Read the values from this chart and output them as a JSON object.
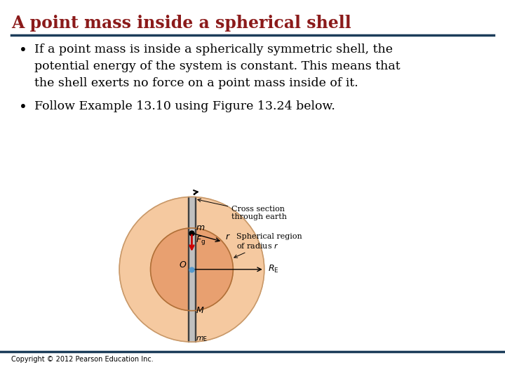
{
  "title": "A point mass inside a spherical shell",
  "title_color": "#8B1A1A",
  "title_fontsize": 17,
  "separator_color": "#1C3D5A",
  "bullet1_line1": "If a point mass is inside a spherically symmetric shell, the",
  "bullet1_line2": "potential energy of the system is constant. This means that",
  "bullet1_line3": "the shell exerts no force on a point mass inside of it.",
  "bullet2": "Follow Example 13.10 using Figure 13.24 below.",
  "bullet_fontsize": 12.5,
  "copyright": "Copyright © 2012 Pearson Education Inc.",
  "bg_color": "#FFFFFF",
  "outer_circle_color": "#F5C9A0",
  "inner_circle_color": "#E8A070",
  "separator_color2": "#1C3D5A"
}
